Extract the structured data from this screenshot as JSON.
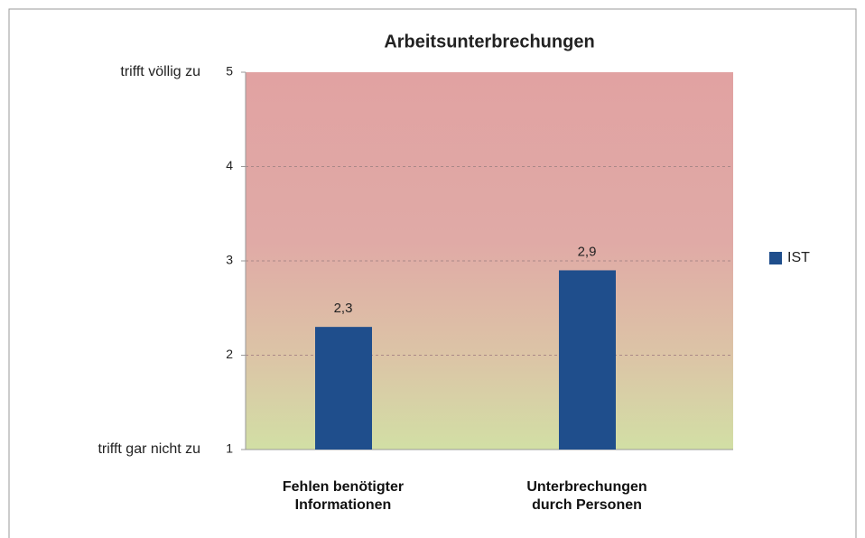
{
  "chart_data": {
    "type": "bar",
    "title": "Arbeitsunterbrechungen",
    "categories": [
      "Fehlen benötigter\nInformationen",
      "Unterbrechungen\ndurch Personen"
    ],
    "series": [
      {
        "name": "IST",
        "color": "#1f4e8c",
        "values": [
          2.3,
          2.9
        ],
        "value_labels": [
          "2,3",
          "2,9"
        ]
      }
    ],
    "ylim": [
      1,
      5
    ],
    "yticks": [
      1,
      2,
      3,
      4,
      5
    ],
    "grid": true,
    "legend": "right",
    "y_axis_annotations": [
      {
        "value": 5,
        "label": "trifft völlig zu"
      },
      {
        "value": 1,
        "label": "trifft gar nicht zu"
      }
    ]
  }
}
